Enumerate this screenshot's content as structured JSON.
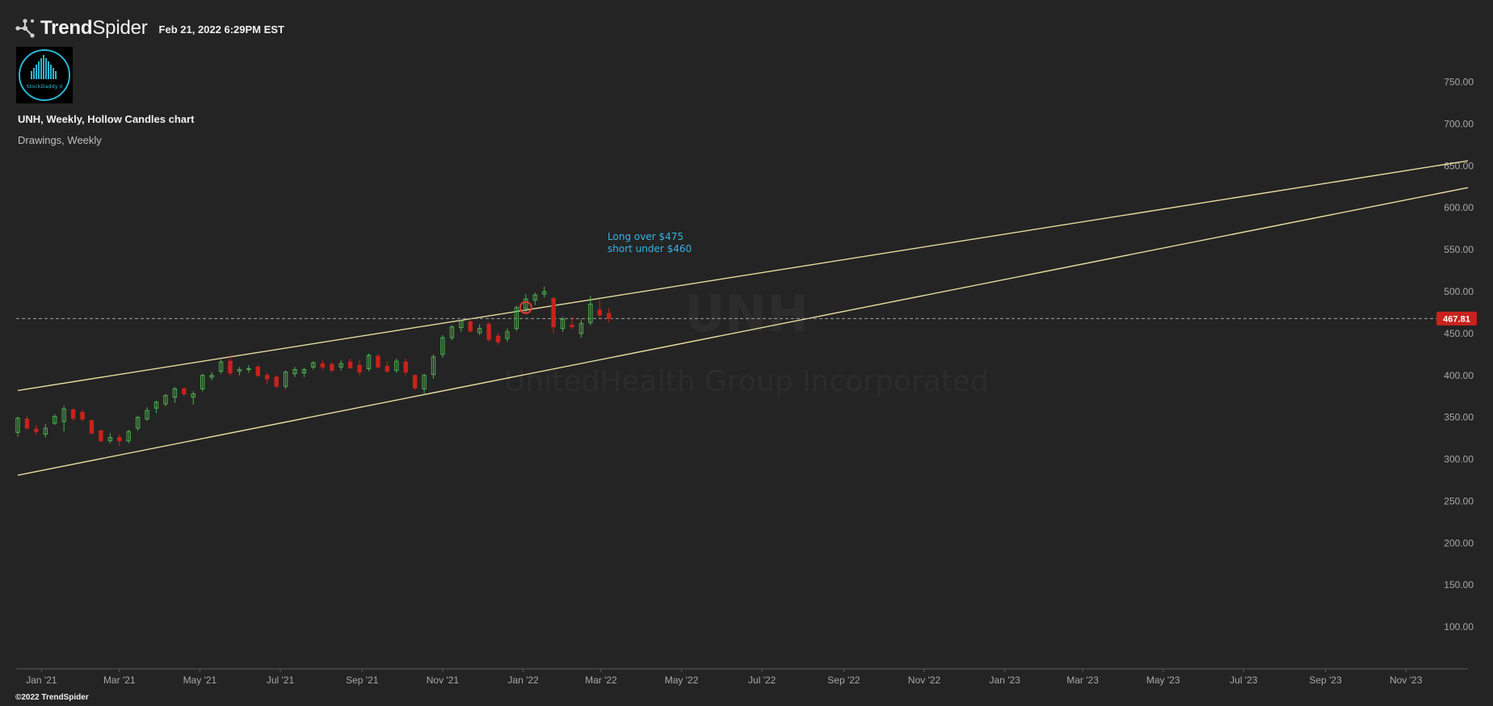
{
  "header": {
    "brand_prefix": "Trend",
    "brand_suffix": "Spider",
    "timestamp": "Feb 21, 2022 6:29PM EST",
    "avatar_text": "StockDaddy II"
  },
  "footer": {
    "copyright": "©2022 TrendSpider"
  },
  "colors": {
    "background": "#242424",
    "up_candle": "#4caf50",
    "down_candle": "#c8231c",
    "trendline": "#e8dca0",
    "annotation": "#33b6e6",
    "price_tag": "#c8231c",
    "marker": "#e03a2e"
  },
  "chart_data": {
    "type": "candlestick",
    "title": "UNH, Weekly, Hollow Candles chart",
    "layer": "Drawings, Weekly",
    "watermark": {
      "symbol": "UNH",
      "name": "UnitedHealth Group Incorporated"
    },
    "x_ticks": [
      "Jan '21",
      "Mar '21",
      "May '21",
      "Jul '21",
      "Sep '21",
      "Nov '21",
      "Jan '22",
      "Mar '22",
      "May '22",
      "Jul '22",
      "Sep '22",
      "Nov '22",
      "Jan '23",
      "Mar '23",
      "May '23",
      "Jul '23",
      "Sep '23",
      "Nov '23"
    ],
    "y_ticks": [
      "750.00",
      "700.00",
      "650.00",
      "600.00",
      "550.00",
      "500.00",
      "450.00",
      "400.00",
      "350.00",
      "300.00",
      "250.00",
      "200.00",
      "150.00",
      "100.00"
    ],
    "ylim": [
      50,
      790
    ],
    "last_price": "467.81",
    "annotation": [
      "Long over $475",
      "short under $460"
    ],
    "trendlines": [
      {
        "start": [
          "2020-12-14",
          382
        ],
        "end": [
          "2023-12-18",
          656
        ]
      },
      {
        "start": [
          "2020-12-14",
          281
        ],
        "end": [
          "2023-12-18",
          624
        ]
      }
    ],
    "marker": [
      "2022-01-03",
      481
    ],
    "candles": [
      {
        "date": "2020-12-14",
        "o": 332,
        "h": 351,
        "l": 327,
        "c": 349
      },
      {
        "date": "2020-12-21",
        "o": 348,
        "h": 352,
        "l": 336,
        "c": 337
      },
      {
        "date": "2020-12-28",
        "o": 336,
        "h": 341,
        "l": 329,
        "c": 333
      },
      {
        "date": "2021-01-04",
        "o": 330,
        "h": 342,
        "l": 326,
        "c": 337
      },
      {
        "date": "2021-01-11",
        "o": 343,
        "h": 354,
        "l": 341,
        "c": 351
      },
      {
        "date": "2021-01-18",
        "o": 345,
        "h": 364,
        "l": 333,
        "c": 360
      },
      {
        "date": "2021-01-25",
        "o": 359,
        "h": 361,
        "l": 346,
        "c": 349
      },
      {
        "date": "2021-02-01",
        "o": 356,
        "h": 359,
        "l": 345,
        "c": 348
      },
      {
        "date": "2021-02-08",
        "o": 346,
        "h": 347,
        "l": 330,
        "c": 331
      },
      {
        "date": "2021-02-15",
        "o": 334,
        "h": 335,
        "l": 320,
        "c": 322
      },
      {
        "date": "2021-02-22",
        "o": 322,
        "h": 331,
        "l": 319,
        "c": 326
      },
      {
        "date": "2021-03-01",
        "o": 326,
        "h": 330,
        "l": 316,
        "c": 322
      },
      {
        "date": "2021-03-08",
        "o": 322,
        "h": 335,
        "l": 319,
        "c": 333
      },
      {
        "date": "2021-03-15",
        "o": 337,
        "h": 352,
        "l": 334,
        "c": 350
      },
      {
        "date": "2021-03-22",
        "o": 348,
        "h": 362,
        "l": 346,
        "c": 358
      },
      {
        "date": "2021-03-29",
        "o": 361,
        "h": 370,
        "l": 355,
        "c": 368
      },
      {
        "date": "2021-04-05",
        "o": 366,
        "h": 378,
        "l": 363,
        "c": 376
      },
      {
        "date": "2021-04-12",
        "o": 374,
        "h": 386,
        "l": 367,
        "c": 384
      },
      {
        "date": "2021-04-19",
        "o": 384,
        "h": 386,
        "l": 375,
        "c": 378
      },
      {
        "date": "2021-04-26",
        "o": 374,
        "h": 381,
        "l": 365,
        "c": 378
      },
      {
        "date": "2021-05-03",
        "o": 384,
        "h": 402,
        "l": 381,
        "c": 400
      },
      {
        "date": "2021-05-10",
        "o": 398,
        "h": 404,
        "l": 394,
        "c": 400
      },
      {
        "date": "2021-05-17",
        "o": 405,
        "h": 419,
        "l": 402,
        "c": 416
      },
      {
        "date": "2021-05-24",
        "o": 417,
        "h": 425,
        "l": 400,
        "c": 403
      },
      {
        "date": "2021-05-31",
        "o": 405,
        "h": 410,
        "l": 400,
        "c": 407
      },
      {
        "date": "2021-06-07",
        "o": 408,
        "h": 412,
        "l": 403,
        "c": 408
      },
      {
        "date": "2021-06-14",
        "o": 410,
        "h": 413,
        "l": 398,
        "c": 400
      },
      {
        "date": "2021-06-21",
        "o": 400,
        "h": 403,
        "l": 390,
        "c": 396
      },
      {
        "date": "2021-06-28",
        "o": 398,
        "h": 400,
        "l": 385,
        "c": 387
      },
      {
        "date": "2021-07-05",
        "o": 387,
        "h": 406,
        "l": 384,
        "c": 404
      },
      {
        "date": "2021-07-12",
        "o": 402,
        "h": 410,
        "l": 398,
        "c": 407
      },
      {
        "date": "2021-07-19",
        "o": 403,
        "h": 409,
        "l": 398,
        "c": 407
      },
      {
        "date": "2021-07-26",
        "o": 410,
        "h": 417,
        "l": 407,
        "c": 415
      },
      {
        "date": "2021-08-02",
        "o": 414,
        "h": 418,
        "l": 406,
        "c": 410
      },
      {
        "date": "2021-08-09",
        "o": 413,
        "h": 416,
        "l": 404,
        "c": 406
      },
      {
        "date": "2021-08-16",
        "o": 410,
        "h": 418,
        "l": 406,
        "c": 414
      },
      {
        "date": "2021-08-23",
        "o": 416,
        "h": 420,
        "l": 408,
        "c": 409
      },
      {
        "date": "2021-08-30",
        "o": 412,
        "h": 418,
        "l": 400,
        "c": 404
      },
      {
        "date": "2021-09-06",
        "o": 408,
        "h": 426,
        "l": 405,
        "c": 424
      },
      {
        "date": "2021-09-13",
        "o": 423,
        "h": 426,
        "l": 408,
        "c": 410
      },
      {
        "date": "2021-09-20",
        "o": 411,
        "h": 417,
        "l": 403,
        "c": 405
      },
      {
        "date": "2021-09-27",
        "o": 406,
        "h": 420,
        "l": 403,
        "c": 417
      },
      {
        "date": "2021-10-04",
        "o": 416,
        "h": 420,
        "l": 400,
        "c": 404
      },
      {
        "date": "2021-10-11",
        "o": 400,
        "h": 401,
        "l": 383,
        "c": 385
      },
      {
        "date": "2021-10-18",
        "o": 384,
        "h": 402,
        "l": 377,
        "c": 400
      },
      {
        "date": "2021-10-25",
        "o": 401,
        "h": 425,
        "l": 396,
        "c": 422
      },
      {
        "date": "2021-11-01",
        "o": 425,
        "h": 448,
        "l": 421,
        "c": 445
      },
      {
        "date": "2021-11-08",
        "o": 445,
        "h": 460,
        "l": 442,
        "c": 458
      },
      {
        "date": "2021-11-15",
        "o": 457,
        "h": 466,
        "l": 452,
        "c": 465
      },
      {
        "date": "2021-11-22",
        "o": 464,
        "h": 466,
        "l": 451,
        "c": 453
      },
      {
        "date": "2021-11-29",
        "o": 451,
        "h": 461,
        "l": 448,
        "c": 456
      },
      {
        "date": "2021-12-06",
        "o": 461,
        "h": 464,
        "l": 440,
        "c": 443
      },
      {
        "date": "2021-12-13",
        "o": 447,
        "h": 451,
        "l": 436,
        "c": 440
      },
      {
        "date": "2021-12-20",
        "o": 444,
        "h": 456,
        "l": 440,
        "c": 452
      },
      {
        "date": "2021-12-27",
        "o": 456,
        "h": 483,
        "l": 453,
        "c": 481
      },
      {
        "date": "2022-01-03",
        "o": 480,
        "h": 497,
        "l": 474,
        "c": 491
      },
      {
        "date": "2022-01-10",
        "o": 490,
        "h": 499,
        "l": 484,
        "c": 496
      },
      {
        "date": "2022-01-17",
        "o": 497,
        "h": 506,
        "l": 493,
        "c": 500
      },
      {
        "date": "2022-01-24",
        "o": 492,
        "h": 493,
        "l": 450,
        "c": 458
      },
      {
        "date": "2022-01-31",
        "o": 456,
        "h": 470,
        "l": 452,
        "c": 467
      },
      {
        "date": "2022-02-07",
        "o": 460,
        "h": 470,
        "l": 455,
        "c": 458
      },
      {
        "date": "2022-02-14",
        "o": 450,
        "h": 467,
        "l": 445,
        "c": 462
      },
      {
        "date": "2022-02-21",
        "o": 463,
        "h": 495,
        "l": 460,
        "c": 485
      },
      {
        "date": "2022-02-28",
        "o": 478,
        "h": 490,
        "l": 468,
        "c": 472
      },
      {
        "date": "2022-03-07",
        "o": 474,
        "h": 480,
        "l": 463,
        "c": 467.81
      }
    ]
  }
}
